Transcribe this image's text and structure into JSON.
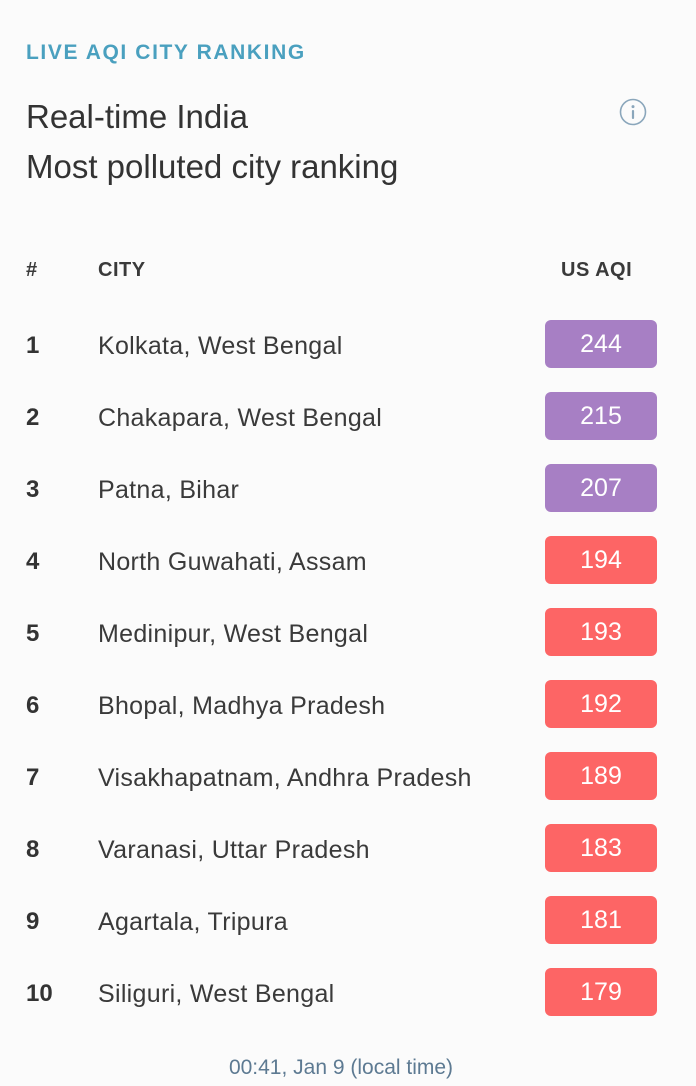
{
  "header": {
    "section_label": "LIVE AQI CITY RANKING",
    "title_line1": "Real-time India",
    "title_line2": "Most polluted city ranking",
    "info_icon": "info-circle-icon"
  },
  "table": {
    "columns": [
      "#",
      "CITY",
      "US AQI"
    ],
    "rows": [
      {
        "rank": "1",
        "city": "Kolkata, West Bengal",
        "aqi": "244",
        "color": "#a77fc4"
      },
      {
        "rank": "2",
        "city": "Chakapara, West Bengal",
        "aqi": "215",
        "color": "#a77fc4"
      },
      {
        "rank": "3",
        "city": "Patna, Bihar",
        "aqi": "207",
        "color": "#a77fc4"
      },
      {
        "rank": "4",
        "city": "North Guwahati, Assam",
        "aqi": "194",
        "color": "#fd6565"
      },
      {
        "rank": "5",
        "city": "Medinipur, West Bengal",
        "aqi": "193",
        "color": "#fd6565"
      },
      {
        "rank": "6",
        "city": "Bhopal, Madhya Pradesh",
        "aqi": "192",
        "color": "#fd6565"
      },
      {
        "rank": "7",
        "city": "Visakhapatnam, Andhra Pradesh",
        "aqi": "189",
        "color": "#fd6565"
      },
      {
        "rank": "8",
        "city": "Varanasi, Uttar Pradesh",
        "aqi": "183",
        "color": "#fd6565"
      },
      {
        "rank": "9",
        "city": "Agartala, Tripura",
        "aqi": "181",
        "color": "#fd6565"
      },
      {
        "rank": "10",
        "city": "Siliguri, West Bengal",
        "aqi": "179",
        "color": "#fd6565"
      }
    ]
  },
  "footer": {
    "timestamp": "00:41, Jan 9 (local time)"
  },
  "colors": {
    "accent": "#4aa0bf",
    "very_unhealthy": "#a77fc4",
    "unhealthy": "#fd6565",
    "footer_text": "#5d7a92"
  }
}
